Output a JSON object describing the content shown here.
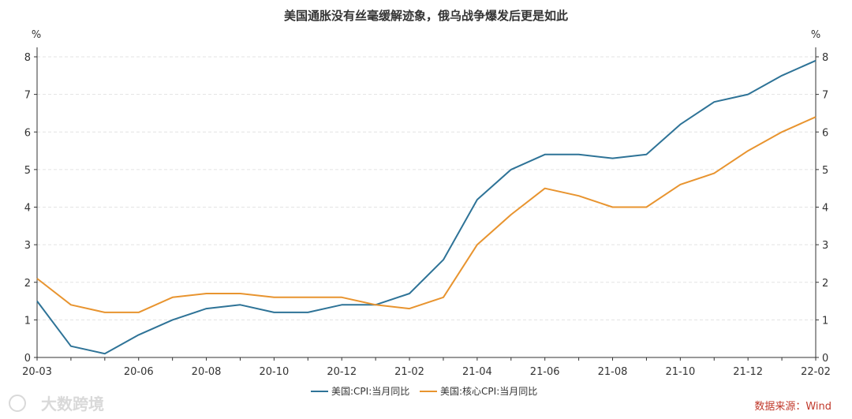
{
  "chart_data": {
    "type": "line",
    "title": "美国通胀没有丝毫缓解迹象，俄乌战争爆发后更是如此",
    "y_unit_left": "%",
    "y_unit_right": "%",
    "ylim": [
      0,
      8
    ],
    "yticks": [
      "0",
      "1",
      "2",
      "3",
      "4",
      "5",
      "6",
      "7",
      "8"
    ],
    "x": [
      "20-03",
      "20-04",
      "20-05",
      "20-06",
      "20-07",
      "20-08",
      "20-09",
      "20-10",
      "20-11",
      "20-12",
      "21-01",
      "21-02",
      "21-03",
      "21-04",
      "21-05",
      "21-06",
      "21-07",
      "21-08",
      "21-09",
      "21-10",
      "21-11",
      "21-12",
      "22-01",
      "22-02"
    ],
    "xtick_labels": [
      "20-03",
      "20-06",
      "20-08",
      "20-10",
      "20-12",
      "21-02",
      "21-04",
      "21-06",
      "21-08",
      "21-10",
      "21-12",
      "22-02"
    ],
    "grid": "horizontal dashed",
    "legend_position": "bottom",
    "series": [
      {
        "name": "美国:CPI:当月同比",
        "color": "#2e7397",
        "values": [
          1.5,
          0.3,
          0.1,
          0.6,
          1.0,
          1.3,
          1.4,
          1.2,
          1.2,
          1.4,
          1.4,
          1.7,
          2.6,
          4.2,
          5.0,
          5.4,
          5.4,
          5.3,
          5.4,
          6.2,
          6.8,
          7.0,
          7.5,
          7.9
        ]
      },
      {
        "name": "美国:核心CPI:当月同比",
        "color": "#e8942f",
        "values": [
          2.1,
          1.4,
          1.2,
          1.2,
          1.6,
          1.7,
          1.7,
          1.6,
          1.6,
          1.6,
          1.4,
          1.3,
          1.6,
          3.0,
          3.8,
          4.5,
          4.3,
          4.0,
          4.0,
          4.6,
          4.9,
          5.5,
          6.0,
          6.4
        ]
      }
    ],
    "source": "数据来源：Wind",
    "watermark": "大数跨境"
  }
}
